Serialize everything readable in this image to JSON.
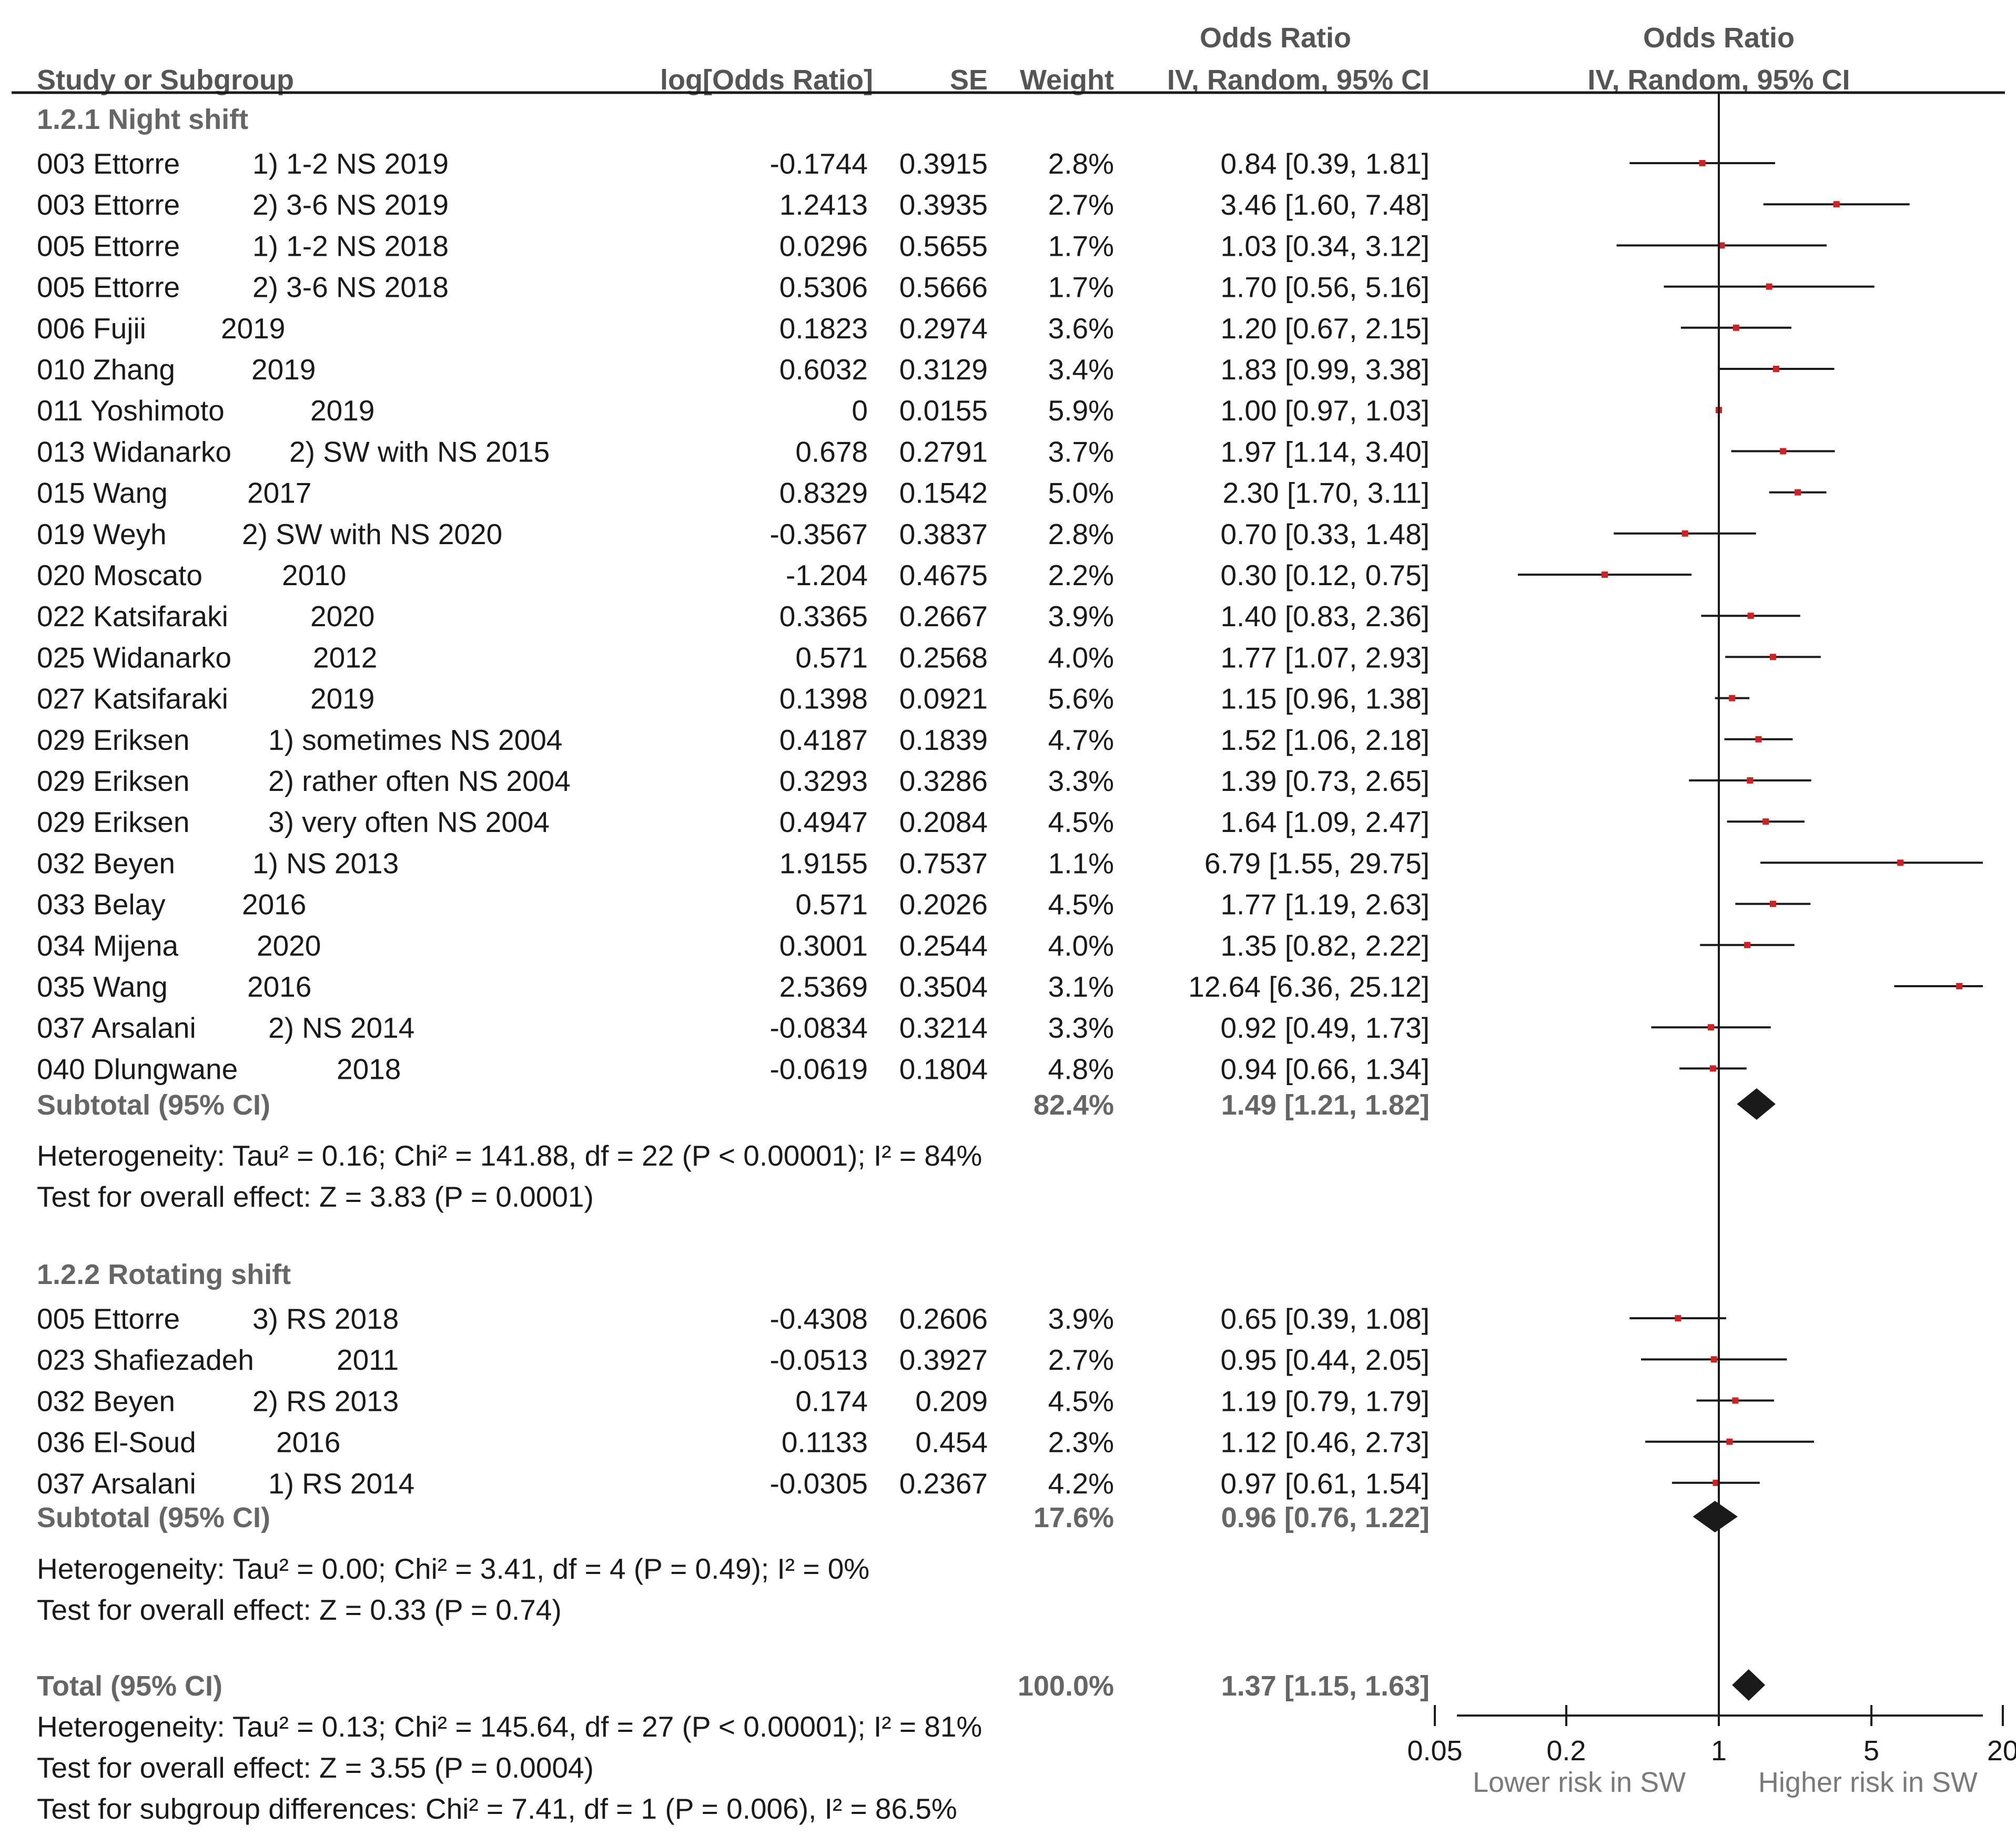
{
  "chart_data": {
    "type": "forest",
    "headers": {
      "study": "Study or Subgroup",
      "log_or": "log[Odds Ratio]",
      "se": "SE",
      "weight": "Weight",
      "or_col_title": "Odds Ratio",
      "or_col_sub": "IV, Random, 95% CI",
      "plot_title": "Odds Ratio",
      "plot_sub": "IV, Random, 95% CI"
    },
    "subgroups": [
      {
        "title": "1.2.1 Night shift",
        "studies": [
          {
            "name": "003 Ettorre",
            "detail": "1) 1-2 NS 2019",
            "log_or": "-0.1744",
            "se": "0.3915",
            "weight": "2.8%",
            "ci_text": "0.84 [0.39, 1.81]",
            "or": 0.84,
            "lo": 0.39,
            "hi": 1.81
          },
          {
            "name": "003 Ettorre",
            "detail": "2) 3-6 NS 2019",
            "log_or": "1.2413",
            "se": "0.3935",
            "weight": "2.7%",
            "ci_text": "3.46 [1.60, 7.48]",
            "or": 3.46,
            "lo": 1.6,
            "hi": 7.48
          },
          {
            "name": "005 Ettorre",
            "detail": "1) 1-2 NS 2018",
            "log_or": "0.0296",
            "se": "0.5655",
            "weight": "1.7%",
            "ci_text": "1.03 [0.34, 3.12]",
            "or": 1.03,
            "lo": 0.34,
            "hi": 3.12
          },
          {
            "name": "005 Ettorre",
            "detail": "2) 3-6 NS 2018",
            "log_or": "0.5306",
            "se": "0.5666",
            "weight": "1.7%",
            "ci_text": "1.70 [0.56, 5.16]",
            "or": 1.7,
            "lo": 0.56,
            "hi": 5.16
          },
          {
            "name": "006 Fujii",
            "detail": "2019",
            "log_or": "0.1823",
            "se": "0.2974",
            "weight": "3.6%",
            "ci_text": "1.20 [0.67, 2.15]",
            "or": 1.2,
            "lo": 0.67,
            "hi": 2.15
          },
          {
            "name": "010 Zhang",
            "detail": "2019",
            "log_or": "0.6032",
            "se": "0.3129",
            "weight": "3.4%",
            "ci_text": "1.83 [0.99, 3.38]",
            "or": 1.83,
            "lo": 0.99,
            "hi": 3.38
          },
          {
            "name": "011 Yoshimoto",
            "detail": "2019",
            "log_or": "0",
            "se": "0.0155",
            "weight": "5.9%",
            "ci_text": "1.00 [0.97, 1.03]",
            "or": 1.0,
            "lo": 0.97,
            "hi": 1.03
          },
          {
            "name": "013 Widanarko",
            "detail": "2) SW with NS 2015",
            "log_or": "0.678",
            "se": "0.2791",
            "weight": "3.7%",
            "ci_text": "1.97 [1.14, 3.40]",
            "or": 1.97,
            "lo": 1.14,
            "hi": 3.4
          },
          {
            "name": "015 Wang",
            "detail": "2017",
            "log_or": "0.8329",
            "se": "0.1542",
            "weight": "5.0%",
            "ci_text": "2.30 [1.70, 3.11]",
            "or": 2.3,
            "lo": 1.7,
            "hi": 3.11
          },
          {
            "name": "019 Weyh",
            "detail": "2) SW with NS 2020",
            "log_or": "-0.3567",
            "se": "0.3837",
            "weight": "2.8%",
            "ci_text": "0.70 [0.33, 1.48]",
            "or": 0.7,
            "lo": 0.33,
            "hi": 1.48
          },
          {
            "name": "020 Moscato",
            "detail": "2010",
            "log_or": "-1.204",
            "se": "0.4675",
            "weight": "2.2%",
            "ci_text": "0.30 [0.12, 0.75]",
            "or": 0.3,
            "lo": 0.12,
            "hi": 0.75
          },
          {
            "name": "022 Katsifaraki",
            "detail": "2020",
            "log_or": "0.3365",
            "se": "0.2667",
            "weight": "3.9%",
            "ci_text": "1.40 [0.83, 2.36]",
            "or": 1.4,
            "lo": 0.83,
            "hi": 2.36
          },
          {
            "name": "025 Widanarko",
            "detail": "2012",
            "log_or": "0.571",
            "se": "0.2568",
            "weight": "4.0%",
            "ci_text": "1.77 [1.07, 2.93]",
            "or": 1.77,
            "lo": 1.07,
            "hi": 2.93
          },
          {
            "name": "027 Katsifaraki",
            "detail": "2019",
            "log_or": "0.1398",
            "se": "0.0921",
            "weight": "5.6%",
            "ci_text": "1.15 [0.96, 1.38]",
            "or": 1.15,
            "lo": 0.96,
            "hi": 1.38
          },
          {
            "name": "029 Eriksen",
            "detail": "1) sometimes NS 2004",
            "log_or": "0.4187",
            "se": "0.1839",
            "weight": "4.7%",
            "ci_text": "1.52 [1.06, 2.18]",
            "or": 1.52,
            "lo": 1.06,
            "hi": 2.18
          },
          {
            "name": "029 Eriksen",
            "detail": "2) rather often NS 2004",
            "log_or": "0.3293",
            "se": "0.3286",
            "weight": "3.3%",
            "ci_text": "1.39 [0.73, 2.65]",
            "or": 1.39,
            "lo": 0.73,
            "hi": 2.65
          },
          {
            "name": "029 Eriksen",
            "detail": "3) very often NS 2004",
            "log_or": "0.4947",
            "se": "0.2084",
            "weight": "4.5%",
            "ci_text": "1.64 [1.09, 2.47]",
            "or": 1.64,
            "lo": 1.09,
            "hi": 2.47
          },
          {
            "name": "032 Beyen",
            "detail": "1) NS 2013",
            "log_or": "1.9155",
            "se": "0.7537",
            "weight": "1.1%",
            "ci_text": "6.79 [1.55, 29.75]",
            "or": 6.79,
            "lo": 1.55,
            "hi": 29.75
          },
          {
            "name": "033 Belay",
            "detail": "2016",
            "log_or": "0.571",
            "se": "0.2026",
            "weight": "4.5%",
            "ci_text": "1.77 [1.19, 2.63]",
            "or": 1.77,
            "lo": 1.19,
            "hi": 2.63
          },
          {
            "name": "034 Mijena",
            "detail": "2020",
            "log_or": "0.3001",
            "se": "0.2544",
            "weight": "4.0%",
            "ci_text": "1.35 [0.82, 2.22]",
            "or": 1.35,
            "lo": 0.82,
            "hi": 2.22
          },
          {
            "name": "035 Wang",
            "detail": "2016",
            "log_or": "2.5369",
            "se": "0.3504",
            "weight": "3.1%",
            "ci_text": "12.64 [6.36, 25.12]",
            "or": 12.64,
            "lo": 6.36,
            "hi": 25.12
          },
          {
            "name": "037 Arsalani",
            "detail": "2) NS 2014",
            "log_or": "-0.0834",
            "se": "0.3214",
            "weight": "3.3%",
            "ci_text": "0.92 [0.49, 1.73]",
            "or": 0.92,
            "lo": 0.49,
            "hi": 1.73
          },
          {
            "name": "040 Dlungwane",
            "detail": "2018",
            "log_or": "-0.0619",
            "se": "0.1804",
            "weight": "4.8%",
            "ci_text": "0.94 [0.66, 1.34]",
            "or": 0.94,
            "lo": 0.66,
            "hi": 1.34
          }
        ],
        "subtotal": {
          "label": "Subtotal (95% CI)",
          "weight": "82.4%",
          "ci_text": "1.49 [1.21, 1.82]",
          "or": 1.49,
          "lo": 1.21,
          "hi": 1.82
        },
        "heterogeneity": "Heterogeneity: Tau² = 0.16; Chi² = 141.88, df = 22 (P < 0.00001); I² = 84%",
        "overall_effect": "Test for overall effect: Z = 3.83 (P = 0.0001)"
      },
      {
        "title": "1.2.2 Rotating shift",
        "studies": [
          {
            "name": "005 Ettorre",
            "detail": "3) RS 2018",
            "log_or": "-0.4308",
            "se": "0.2606",
            "weight": "3.9%",
            "ci_text": "0.65 [0.39, 1.08]",
            "or": 0.65,
            "lo": 0.39,
            "hi": 1.08
          },
          {
            "name": "023 Shafiezadeh",
            "detail": "2011",
            "log_or": "-0.0513",
            "se": "0.3927",
            "weight": "2.7%",
            "ci_text": "0.95 [0.44, 2.05]",
            "or": 0.95,
            "lo": 0.44,
            "hi": 2.05
          },
          {
            "name": "032 Beyen",
            "detail": "2) RS 2013",
            "log_or": "0.174",
            "se": "0.209",
            "weight": "4.5%",
            "ci_text": "1.19 [0.79, 1.79]",
            "or": 1.19,
            "lo": 0.79,
            "hi": 1.79
          },
          {
            "name": "036 El-Soud",
            "detail": "2016",
            "log_or": "0.1133",
            "se": "0.454",
            "weight": "2.3%",
            "ci_text": "1.12 [0.46, 2.73]",
            "or": 1.12,
            "lo": 0.46,
            "hi": 2.73
          },
          {
            "name": "037 Arsalani",
            "detail": "1) RS 2014",
            "log_or": "-0.0305",
            "se": "0.2367",
            "weight": "4.2%",
            "ci_text": "0.97 [0.61, 1.54]",
            "or": 0.97,
            "lo": 0.61,
            "hi": 1.54
          }
        ],
        "subtotal": {
          "label": "Subtotal (95% CI)",
          "weight": "17.6%",
          "ci_text": "0.96 [0.76, 1.22]",
          "or": 0.96,
          "lo": 0.76,
          "hi": 1.22
        },
        "heterogeneity": "Heterogeneity: Tau² = 0.00; Chi² = 3.41, df = 4 (P = 0.49); I² = 0%",
        "overall_effect": "Test for overall effect: Z = 0.33 (P = 0.74)"
      }
    ],
    "total": {
      "label": "Total (95% CI)",
      "weight": "100.0%",
      "ci_text": "1.37 [1.15, 1.63]",
      "or": 1.37,
      "lo": 1.15,
      "hi": 1.63
    },
    "total_heterogeneity": "Heterogeneity: Tau² = 0.13; Chi² = 145.64, df = 27 (P < 0.00001); I² = 81%",
    "total_overall_effect": "Test for overall effect: Z = 3.55 (P = 0.0004)",
    "subgroup_differences": "Test for subgroup differences: Chi² = 7.41, df = 1 (P = 0.006), I² = 86.5%",
    "x_scale": "log",
    "xlim": [
      0.03,
      30
    ],
    "x_ticks": [
      "0.05",
      "0.2",
      "1",
      "5",
      "20"
    ],
    "x_tick_values": [
      0.05,
      0.2,
      1,
      5,
      20
    ],
    "left_label": "Lower risk in SW",
    "right_label": "Higher risk in SW",
    "point_color": "#d42020",
    "ci_color": "#1a1a1a",
    "diamond_color": "#1a1a1a"
  }
}
